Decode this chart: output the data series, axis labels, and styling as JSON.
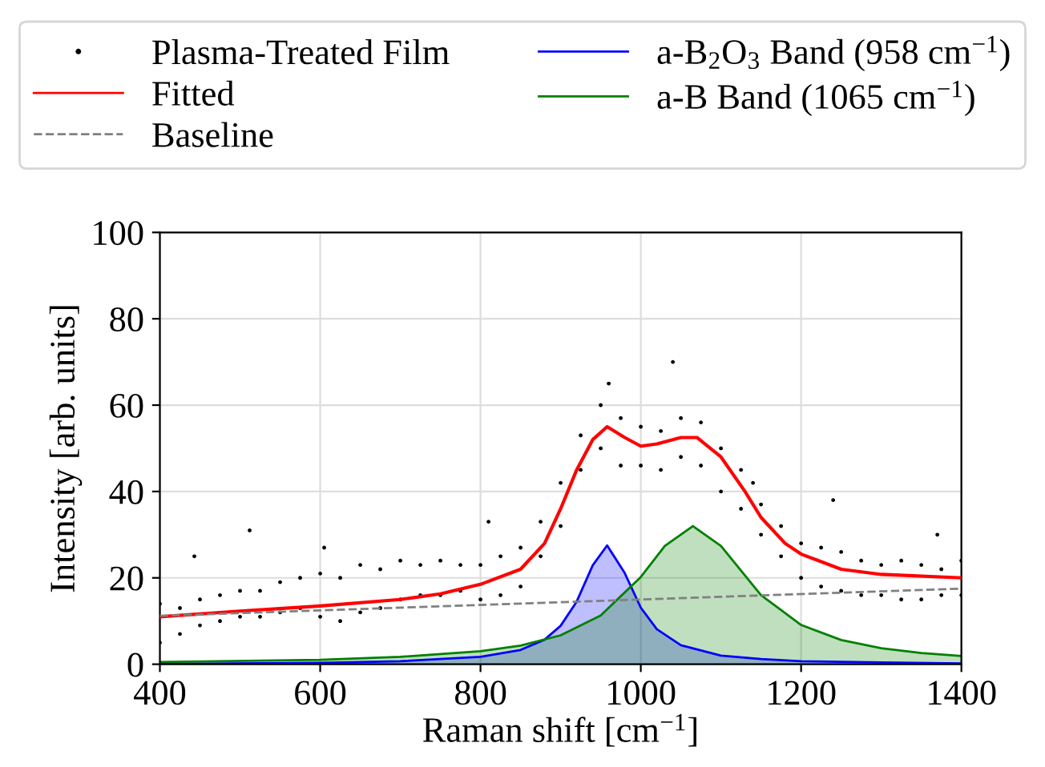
{
  "chart_data": {
    "type": "line",
    "xlabel": "Raman shift [cm$^{−1}$]",
    "ylabel": "Intensity [arb. units]",
    "xlim": [
      400,
      1400
    ],
    "xticks": [
      400,
      600,
      800,
      1000,
      1200,
      1400
    ],
    "ylim": [
      0,
      100
    ],
    "yticks": [
      0,
      20,
      40,
      60,
      80,
      100
    ],
    "grid": true,
    "legend": "top",
    "series": [
      {
        "name": "Plasma-Treated Film",
        "type": "scatter",
        "color": "#000000",
        "marker": "circle",
        "x": [
          400,
          400,
          425,
          425,
          450,
          450,
          475,
          475,
          500,
          500,
          525,
          525,
          550,
          550,
          575,
          575,
          600,
          600,
          625,
          625,
          650,
          650,
          675,
          675,
          700,
          700,
          725,
          725,
          750,
          750,
          775,
          775,
          800,
          800,
          825,
          825,
          850,
          850,
          875,
          875,
          900,
          900,
          925,
          925,
          950,
          950,
          975,
          975,
          1000,
          1000,
          1025,
          1025,
          1050,
          1050,
          1075,
          1075,
          1100,
          1100,
          1125,
          1125,
          1150,
          1150,
          1175,
          1175,
          1200,
          1200,
          1225,
          1225,
          1250,
          1250,
          1275,
          1275,
          1300,
          1300,
          1325,
          1325,
          1350,
          1350,
          1375,
          1375,
          1400,
          1400,
          443,
          512,
          605,
          1040,
          960,
          810,
          1140,
          1240,
          1370
        ],
        "values": [
          5,
          14,
          7,
          13,
          9,
          15,
          10,
          16,
          11,
          17,
          11,
          17,
          12,
          19,
          13,
          20,
          11,
          21,
          10,
          20,
          12,
          23,
          13,
          22,
          15,
          24,
          16,
          23,
          16,
          24,
          17,
          23,
          15,
          23,
          16,
          25,
          18,
          27,
          25,
          33,
          32,
          42,
          45,
          53,
          50,
          60,
          46,
          57,
          46,
          55,
          45,
          54,
          48,
          57,
          46,
          56,
          40,
          50,
          36,
          45,
          30,
          37,
          25,
          32,
          20,
          28,
          18,
          27,
          17,
          26,
          16,
          24,
          16,
          23,
          15,
          24,
          15,
          23,
          16,
          22,
          16,
          24,
          25,
          31,
          27,
          70,
          65,
          33,
          42,
          38,
          30
        ]
      },
      {
        "name": "Fitted",
        "color": "#ff0000",
        "line_style": "solid",
        "x": [
          400,
          500,
          600,
          700,
          750,
          800,
          850,
          880,
          900,
          920,
          940,
          958,
          980,
          1000,
          1020,
          1050,
          1070,
          1100,
          1130,
          1150,
          1180,
          1200,
          1250,
          1300,
          1400
        ],
        "values": [
          11,
          12.3,
          13.5,
          15,
          16.3,
          18.5,
          22,
          28,
          36,
          45,
          52,
          55,
          52.5,
          50.5,
          51,
          52.5,
          52.5,
          48,
          40,
          34,
          28,
          25.5,
          22,
          20.8,
          20
        ]
      },
      {
        "name": "Baseline",
        "color": "#808080",
        "line_style": "dashed",
        "x": [
          400,
          1400
        ],
        "values": [
          11.2,
          17.5
        ]
      },
      {
        "name": "a-B$_{2}$O$_{3}$ Band (958 cm$^{−1}$)",
        "type": "area",
        "color": "#0000ff",
        "line_style": "solid",
        "x": [
          400,
          600,
          700,
          800,
          850,
          880,
          900,
          920,
          940,
          958,
          980,
          1000,
          1020,
          1050,
          1100,
          1150,
          1200,
          1300,
          1400
        ],
        "values": [
          0.1,
          0.3,
          0.7,
          1.7,
          3.3,
          5.7,
          8.9,
          14.5,
          22.9,
          27.5,
          21.1,
          13.1,
          8.1,
          4.4,
          2.0,
          1.2,
          0.7,
          0.4,
          0.2
        ]
      },
      {
        "name": "a-B Band (1065 cm$^{−1}$)",
        "type": "area",
        "color": "#008000",
        "line_style": "solid",
        "x": [
          400,
          600,
          700,
          800,
          850,
          900,
          950,
          1000,
          1030,
          1065,
          1100,
          1150,
          1200,
          1250,
          1300,
          1350,
          1400
        ],
        "values": [
          0.5,
          1.0,
          1.7,
          3.0,
          4.3,
          6.7,
          11.3,
          20.2,
          27.4,
          32,
          27.4,
          16.0,
          9.1,
          5.6,
          3.7,
          2.6,
          1.9
        ]
      }
    ]
  }
}
